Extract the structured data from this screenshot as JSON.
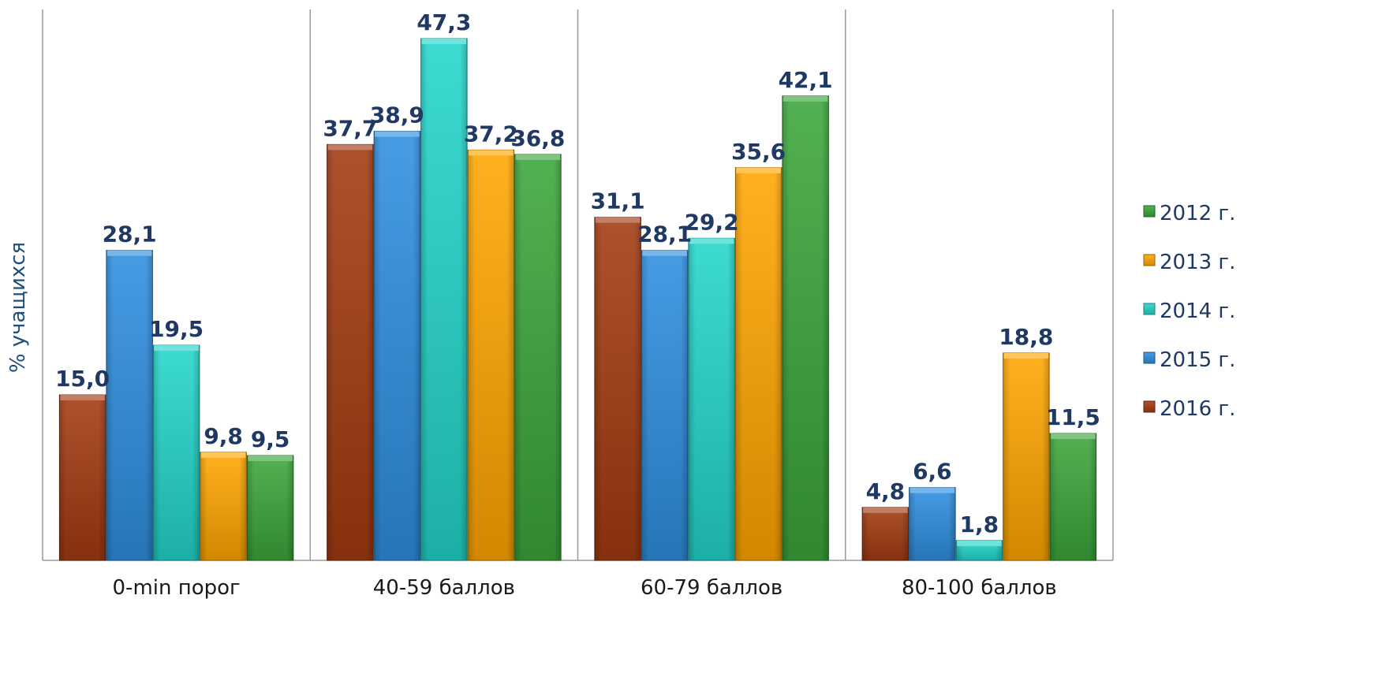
{
  "chart_data": {
    "type": "bar",
    "categories": [
      "0-min порог",
      "40-59 баллов",
      "60-79 баллов",
      "80-100 баллов"
    ],
    "series": [
      {
        "name": "2016 г.",
        "color": "#a33a10",
        "values": [
          15.0,
          37.7,
          31.1,
          4.8
        ],
        "labels": [
          "15,0",
          "37,7",
          "31,1",
          "4,8"
        ]
      },
      {
        "name": "2015 г.",
        "color": "#2e8fe0",
        "values": [
          28.1,
          38.9,
          28.1,
          6.6
        ],
        "labels": [
          "28,1",
          "38,9",
          "28,1",
          "6,6"
        ]
      },
      {
        "name": "2014 г.",
        "color": "#22d6cc",
        "values": [
          19.5,
          47.3,
          29.2,
          1.8
        ],
        "labels": [
          "19,5",
          "47,3",
          "29,2",
          "1,8"
        ]
      },
      {
        "name": "2013 г.",
        "color": "#ffa600",
        "values": [
          9.8,
          37.2,
          35.6,
          18.8
        ],
        "labels": [
          "9,8",
          "37,2",
          "35,6",
          "18,8"
        ]
      },
      {
        "name": "2012 г.",
        "color": "#3aa63a",
        "values": [
          9.5,
          36.8,
          42.1,
          11.5
        ],
        "labels": [
          "9,5",
          "36,8",
          "42,1",
          "11,5"
        ]
      }
    ],
    "legend_order": [
      "2012 г.",
      "2013 г.",
      "2014 г.",
      "2015 г.",
      "2016 г."
    ],
    "ylabel": "%  учащихся",
    "xlabel": "",
    "ylim": [
      0,
      47.3
    ],
    "grid": false,
    "legend_position": "right"
  }
}
